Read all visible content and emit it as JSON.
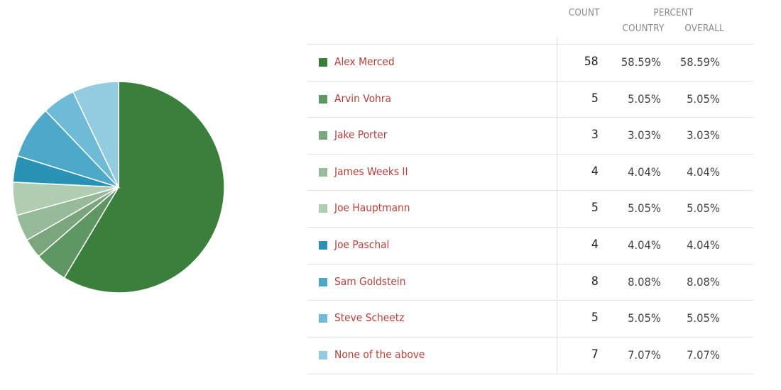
{
  "chart_data": {
    "type": "pie",
    "columns": {
      "count": "COUNT",
      "percent": "PERCENT",
      "country": "COUNTRY",
      "overall": "OVERALL"
    },
    "slices": [
      {
        "name": "Alex Merced",
        "count": "58",
        "country": "58.59%",
        "overall": "58.59%",
        "value": 58,
        "color": "#3a7f3c"
      },
      {
        "name": "Arvin Vohra",
        "count": "5",
        "country": "5.05%",
        "overall": "5.05%",
        "value": 5,
        "color": "#5f9762"
      },
      {
        "name": "Jake Porter",
        "count": "3",
        "country": "3.03%",
        "overall": "3.03%",
        "value": 3,
        "color": "#7ba67d"
      },
      {
        "name": "James Weeks II",
        "count": "4",
        "country": "4.04%",
        "overall": "4.04%",
        "value": 4,
        "color": "#97ba98"
      },
      {
        "name": "Joe Hauptmann",
        "count": "5",
        "country": "5.05%",
        "overall": "5.05%",
        "value": 5,
        "color": "#b1cdb1"
      },
      {
        "name": "Joe Paschal",
        "count": "4",
        "country": "4.04%",
        "overall": "4.04%",
        "value": 4,
        "color": "#2a93b5"
      },
      {
        "name": "Sam Goldstein",
        "count": "8",
        "country": "8.08%",
        "overall": "8.08%",
        "value": 8,
        "color": "#4ea9c9"
      },
      {
        "name": "Steve Scheetz",
        "count": "5",
        "country": "5.05%",
        "overall": "5.05%",
        "value": 5,
        "color": "#6fbad6"
      },
      {
        "name": "None of the above",
        "count": "7",
        "country": "7.07%",
        "overall": "7.07%",
        "value": 7,
        "color": "#93cbe0"
      }
    ]
  }
}
